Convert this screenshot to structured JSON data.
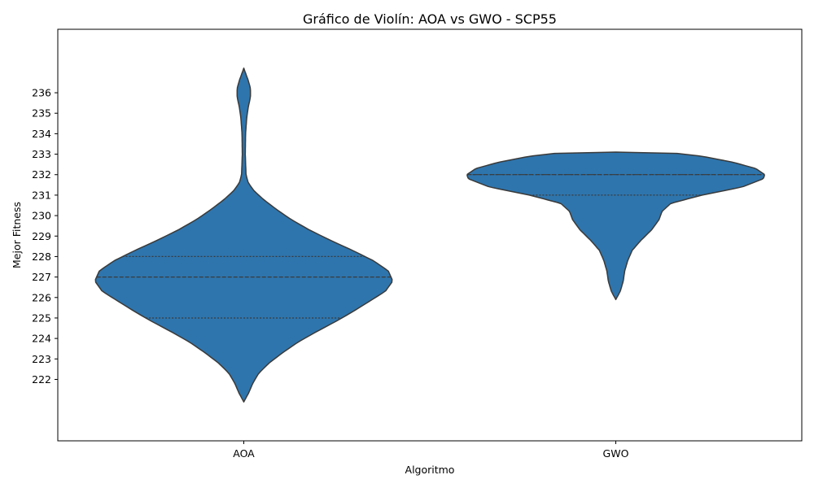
{
  "chart_data": {
    "type": "violin",
    "title": "Gráfico de Violín: AOA vs GWO - SCP55",
    "xlabel": "Algoritmo",
    "ylabel": "Mejor Fitness",
    "categories": [
      "AOA",
      "GWO"
    ],
    "yticks": [
      222,
      223,
      224,
      225,
      226,
      227,
      228,
      229,
      230,
      231,
      232,
      233,
      234,
      235,
      236
    ],
    "ylim": [
      219,
      239.1
    ],
    "grid": false,
    "legend": "none",
    "color": "#2e75ad",
    "edge_color": "#3a3a3a",
    "violins": [
      {
        "category": "AOA",
        "min": 220.9,
        "max": 237.2,
        "quartiles": {
          "q1": 225,
          "median": 227,
          "q3": 228
        },
        "density_profile": [
          [
            220.9,
            0.0
          ],
          [
            221.3,
            0.03
          ],
          [
            221.8,
            0.06
          ],
          [
            222.3,
            0.1
          ],
          [
            222.8,
            0.17
          ],
          [
            223.3,
            0.26
          ],
          [
            223.8,
            0.36
          ],
          [
            224.3,
            0.48
          ],
          [
            224.8,
            0.61
          ],
          [
            225.3,
            0.73
          ],
          [
            225.8,
            0.84
          ],
          [
            226.3,
            0.95
          ],
          [
            226.8,
            1.0
          ],
          [
            227.3,
            0.97
          ],
          [
            227.8,
            0.87
          ],
          [
            228.3,
            0.73
          ],
          [
            228.8,
            0.58
          ],
          [
            229.3,
            0.44
          ],
          [
            229.8,
            0.32
          ],
          [
            230.3,
            0.22
          ],
          [
            230.8,
            0.13
          ],
          [
            231.2,
            0.07
          ],
          [
            231.6,
            0.03
          ],
          [
            232.0,
            0.015
          ],
          [
            233.0,
            0.01
          ],
          [
            234.0,
            0.012
          ],
          [
            234.8,
            0.02
          ],
          [
            235.3,
            0.03
          ],
          [
            235.8,
            0.045
          ],
          [
            236.2,
            0.045
          ],
          [
            236.6,
            0.03
          ],
          [
            236.9,
            0.015
          ],
          [
            237.2,
            0.0
          ]
        ]
      },
      {
        "category": "GWO",
        "min": 225.9,
        "max": 233.1,
        "quartiles": {
          "q1": 231,
          "median": 232,
          "q3": 232
        },
        "density_profile": [
          [
            225.9,
            0.0
          ],
          [
            226.3,
            0.03
          ],
          [
            226.8,
            0.05
          ],
          [
            227.3,
            0.06
          ],
          [
            227.8,
            0.08
          ],
          [
            228.3,
            0.11
          ],
          [
            228.8,
            0.17
          ],
          [
            229.3,
            0.24
          ],
          [
            229.8,
            0.29
          ],
          [
            230.2,
            0.31
          ],
          [
            230.6,
            0.37
          ],
          [
            231.0,
            0.58
          ],
          [
            231.4,
            0.85
          ],
          [
            231.8,
            0.99
          ],
          [
            232.0,
            1.0
          ],
          [
            232.3,
            0.94
          ],
          [
            232.6,
            0.79
          ],
          [
            232.9,
            0.58
          ],
          [
            233.05,
            0.4
          ],
          [
            233.1,
            0.0
          ]
        ]
      }
    ]
  }
}
